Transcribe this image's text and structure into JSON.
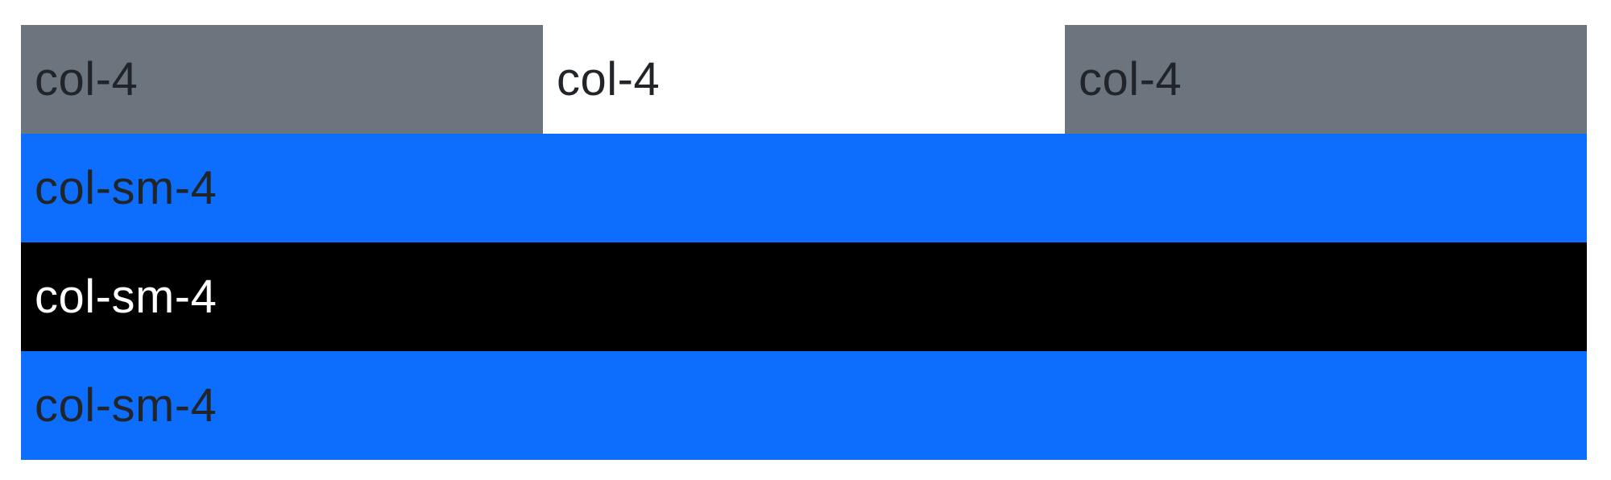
{
  "grid": {
    "row1": [
      {
        "label": "col-4",
        "bg": "#6c757d"
      },
      {
        "label": "col-4",
        "bg": "#ffffff"
      },
      {
        "label": "col-4",
        "bg": "#6c757d"
      }
    ],
    "rows_sm": [
      {
        "label": "col-sm-4",
        "bg": "#0d6efd",
        "text_color": "#212529"
      },
      {
        "label": "col-sm-4",
        "bg": "#000000",
        "text_color": "#ffffff"
      },
      {
        "label": "col-sm-4",
        "bg": "#0d6efd",
        "text_color": "#212529"
      }
    ]
  },
  "colors": {
    "secondary": "#6c757d",
    "primary": "#0d6efd",
    "dark": "#000000",
    "white": "#ffffff",
    "body_text": "#212529"
  }
}
